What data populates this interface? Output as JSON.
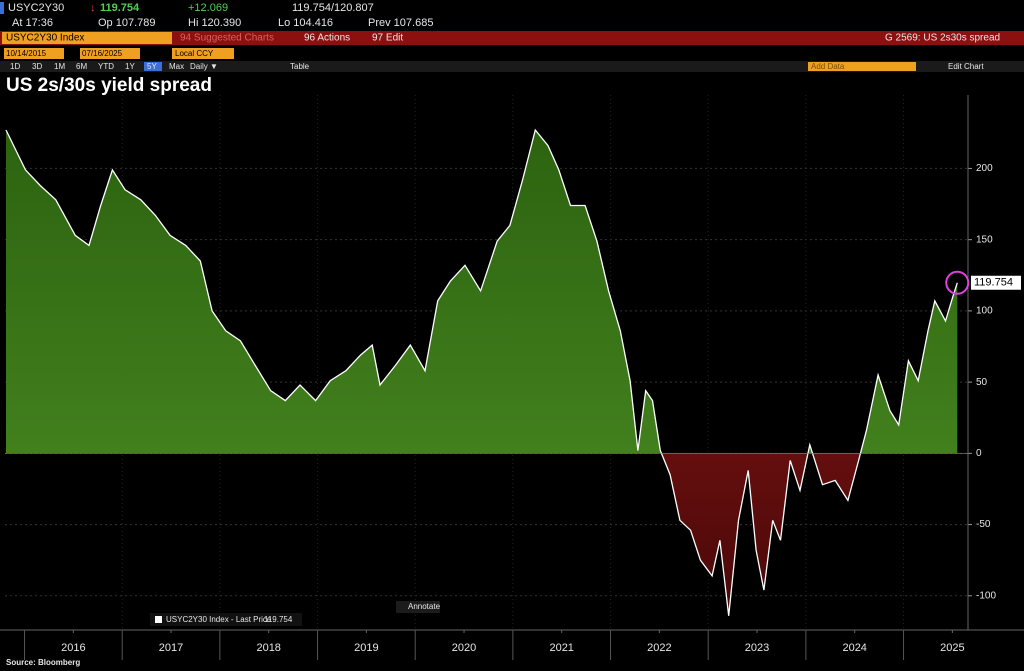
{
  "header": {
    "ticker": "USYC2Y30",
    "last": "119.754",
    "change": "+12.069",
    "bid_ask": "119.754/120.807",
    "at": "At 17:36",
    "open": "Op 107.789",
    "high": "Hi 120.390",
    "low": "Lo 104.416",
    "prev": "Prev 107.685"
  },
  "toolbar": {
    "security": "USYC2Y30 Index",
    "suggested": "94 Suggested Charts",
    "actions": "96 Actions",
    "edit": "97 Edit",
    "chart_id": "G 2569: US 2s30s spread"
  },
  "range": {
    "start": "10/14/2015",
    "end": "07/16/2025",
    "currency": "Local CCY"
  },
  "periods": [
    "1D",
    "3D",
    "1M",
    "6M",
    "YTD",
    "1Y",
    "5Y",
    "Max"
  ],
  "controls": {
    "frequency": "Daily ▼",
    "table": "Table",
    "add_data": "Add Data",
    "edit_chart": "Edit Chart",
    "annotate": "Annotate"
  },
  "source": "Source: Bloomberg",
  "chart_data": {
    "type": "area",
    "title": "US 2s/30s yield spread",
    "x": [
      2015.81,
      2015.91,
      2016.01,
      2016.16,
      2016.32,
      2016.52,
      2016.66,
      2016.78,
      2016.9,
      2017.03,
      2017.19,
      2017.34,
      2017.49,
      2017.65,
      2017.8,
      2017.92,
      2018.06,
      2018.21,
      2018.36,
      2018.52,
      2018.67,
      2018.82,
      2018.98,
      2019.13,
      2019.29,
      2019.44,
      2019.56,
      2019.64,
      2019.8,
      2019.95,
      2020.1,
      2020.23,
      2020.36,
      2020.51,
      2020.67,
      2020.84,
      2020.97,
      2021.1,
      2021.23,
      2021.36,
      2021.47,
      2021.59,
      2021.74,
      2021.86,
      2021.98,
      2022.1,
      2022.2,
      2022.28,
      2022.36,
      2022.43,
      2022.51,
      2022.61,
      2022.71,
      2022.82,
      2022.92,
      2023.04,
      2023.12,
      2023.21,
      2023.31,
      2023.41,
      2023.49,
      2023.57,
      2023.66,
      2023.74,
      2023.84,
      2023.94,
      2024.04,
      2024.17,
      2024.3,
      2024.43,
      2024.54,
      2024.62,
      2024.74,
      2024.86,
      2024.95,
      2025.05,
      2025.15,
      2025.25,
      2025.32,
      2025.43,
      2025.51,
      2025.55
    ],
    "series": [
      {
        "name": "USYC2Y30 Index - Last Price",
        "color": "#ffffff",
        "pos_color": "#3f7d18",
        "neg_color": "#8b1515",
        "values": [
          227,
          213,
          199,
          188,
          178,
          153,
          146,
          174,
          199,
          185,
          178,
          167,
          153,
          146,
          135,
          100,
          86,
          79,
          62,
          44,
          37,
          48,
          37,
          51,
          58,
          69,
          76,
          48,
          62,
          76,
          58,
          107,
          121,
          132,
          114,
          149,
          160,
          192,
          227,
          216,
          199,
          174,
          174,
          149,
          114,
          86,
          51,
          2,
          44,
          37,
          2,
          -15,
          -47,
          -54,
          -75,
          -86,
          -61,
          -114,
          -47,
          -12,
          -68,
          -96,
          -47,
          -61,
          -5,
          -26,
          6,
          -22,
          -19,
          -33,
          -5,
          16,
          55,
          30,
          20,
          65,
          51,
          86,
          107,
          93,
          111,
          119.754
        ]
      }
    ],
    "xlim": [
      2015.8,
      2025.66
    ],
    "xticks": [
      {
        "value": 2016.5,
        "label": "2016"
      },
      {
        "value": 2017.5,
        "label": "2017"
      },
      {
        "value": 2018.5,
        "label": "2018"
      },
      {
        "value": 2019.5,
        "label": "2019"
      },
      {
        "value": 2020.5,
        "label": "2020"
      },
      {
        "value": 2021.5,
        "label": "2021"
      },
      {
        "value": 2022.5,
        "label": "2022"
      },
      {
        "value": 2023.5,
        "label": "2023"
      },
      {
        "value": 2024.5,
        "label": "2024"
      },
      {
        "value": 2025.5,
        "label": "2025"
      }
    ],
    "ylim": [
      -124,
      234
    ],
    "yticks": [
      -100,
      -50,
      0,
      50,
      100,
      150,
      200
    ],
    "grid": true
  }
}
